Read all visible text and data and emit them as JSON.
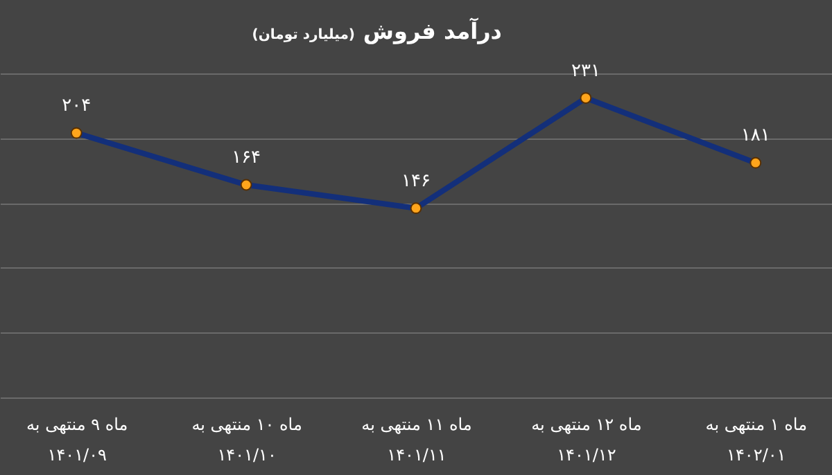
{
  "chart_data": {
    "type": "line",
    "title": "درآمد فروش",
    "subtitle": "(میلیارد تومان)",
    "categories": [
      "ماه ۹ منتهی به\n۱۴۰۱/۰۹",
      "ماه ۱۰ منتهی به\n۱۴۰۱/۱۰",
      "ماه ۱۱ منتهی به\n۱۴۰۱/۱۱",
      "ماه ۱۲ منتهی به\n۱۴۰۱/۱۲",
      "ماه ۱ منتهی به\n۱۴۰۲/۰۱"
    ],
    "series": [
      {
        "color": "#132f7a",
        "values": [
          204,
          164,
          146,
          231,
          181
        ],
        "value_labels": [
          "۲۰۴",
          "۱۶۴",
          "۱۴۶",
          "۲۳۱",
          "۱۸۱"
        ]
      }
    ],
    "ylim": [
      0,
      250
    ],
    "yticks": [
      {
        "value": 0,
        "label": null
      },
      {
        "value": 50,
        "label": null
      },
      {
        "value": 100,
        "label": null
      },
      {
        "value": 150,
        "label": null
      },
      {
        "value": 200,
        "label": null
      },
      {
        "value": 250,
        "label": null
      }
    ],
    "grid": "y",
    "tick_labels": "x",
    "marker": "circle",
    "line_style": "solid"
  }
}
